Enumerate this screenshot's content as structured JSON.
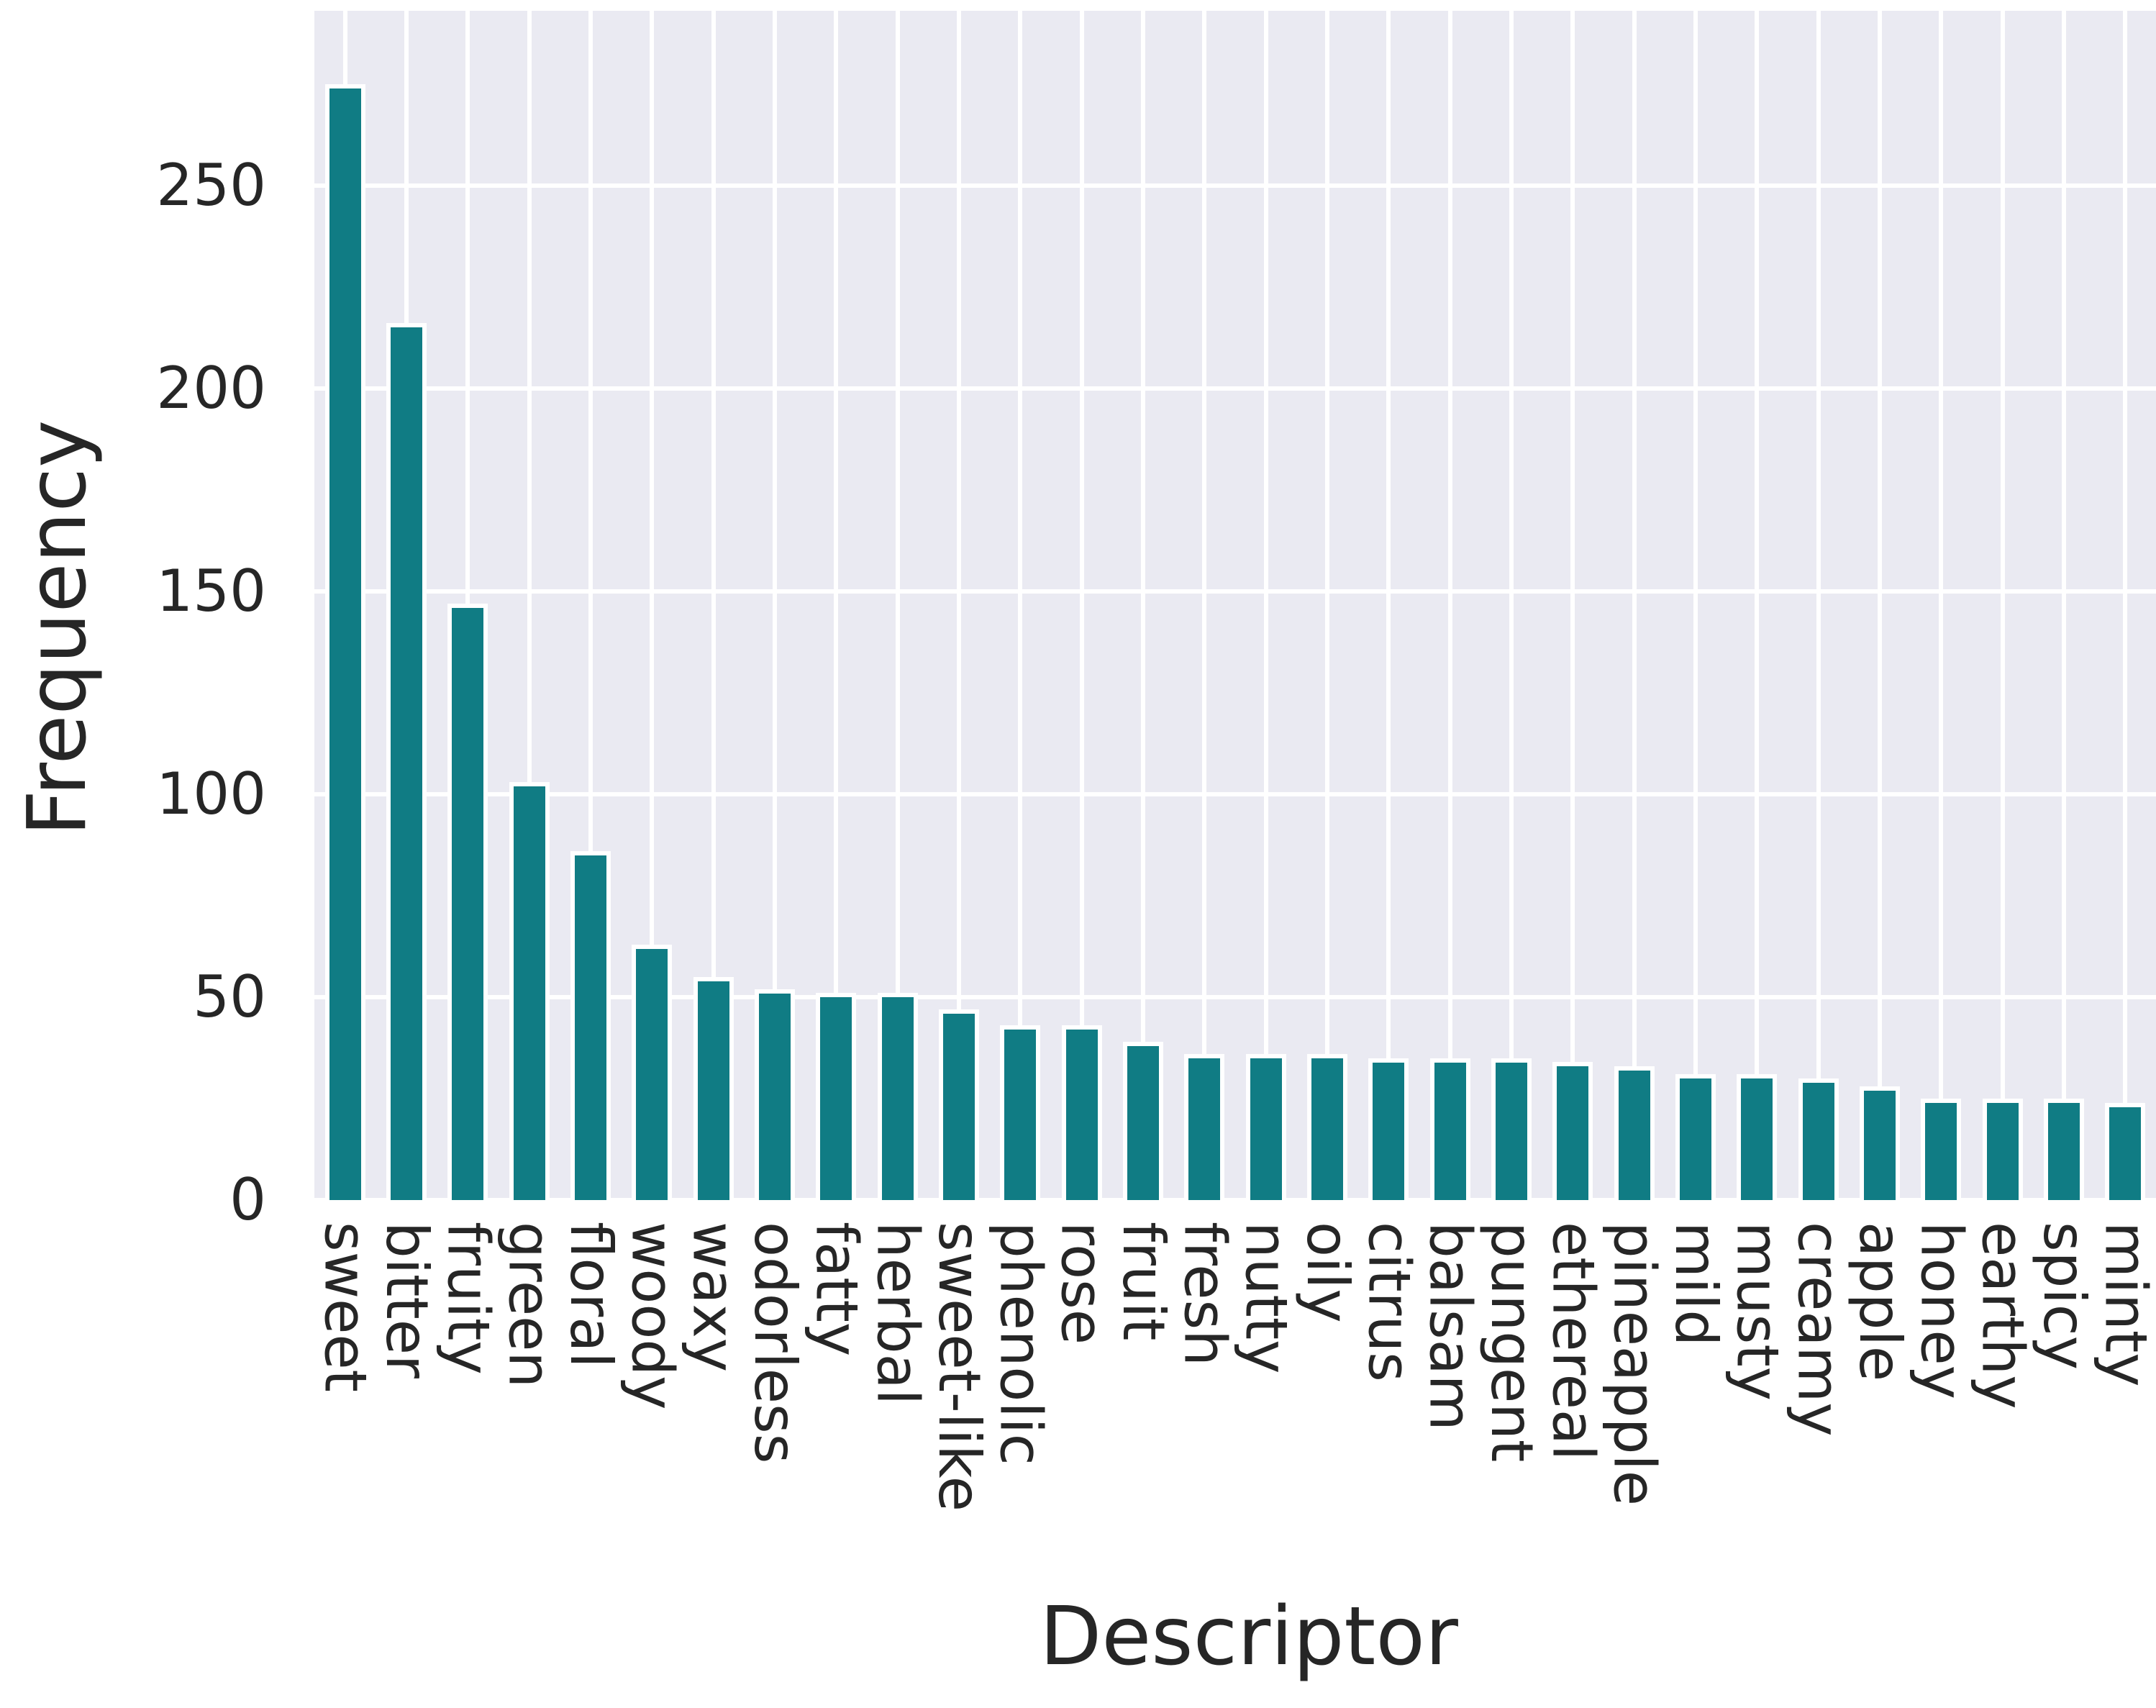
{
  "chart_data": {
    "type": "bar",
    "title": "",
    "xlabel": "Descriptor",
    "ylabel": "Frequency",
    "categories": [
      "sweet",
      "bitter",
      "fruity",
      "green",
      "floral",
      "woody",
      "waxy",
      "odorless",
      "fatty",
      "herbal",
      "sweet-like",
      "phenolic",
      "rose",
      "fruit",
      "fresh",
      "nutty",
      "oily",
      "citrus",
      "balsam",
      "pungent",
      "ethereal",
      "pineapple",
      "mild",
      "musty",
      "creamy",
      "apple",
      "honey",
      "earthy",
      "spicy",
      "minty"
    ],
    "values": [
      275,
      216,
      147,
      103,
      86,
      63,
      55,
      52,
      51,
      51,
      47,
      43,
      43,
      39,
      36,
      36,
      36,
      35,
      35,
      35,
      34,
      33,
      31,
      31,
      30,
      28,
      25,
      25,
      25,
      24
    ],
    "yticks": [
      0,
      50,
      100,
      150,
      200,
      250
    ],
    "ylim": [
      0,
      293
    ],
    "grid": true,
    "legend": "none",
    "bar_color": "#107C84",
    "bar_edge_color": "#FFFFFF",
    "plot_bg": "#EAEAF2",
    "grid_color": "#FFFFFF",
    "text_color": "#262626"
  }
}
